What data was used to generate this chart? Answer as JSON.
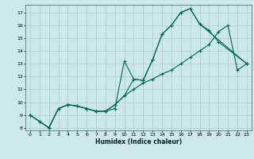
{
  "xlabel": "Humidex (Indice chaleur)",
  "bg_color": "#cce8e8",
  "grid_color": "#aacccc",
  "line_color": "#006655",
  "xlim": [
    -0.5,
    23.5
  ],
  "ylim": [
    7.8,
    17.6
  ],
  "xticks": [
    0,
    1,
    2,
    3,
    4,
    5,
    6,
    7,
    8,
    9,
    10,
    11,
    12,
    13,
    14,
    15,
    16,
    17,
    18,
    19,
    20,
    21,
    22,
    23
  ],
  "yticks": [
    8,
    9,
    10,
    11,
    12,
    13,
    14,
    15,
    16,
    17
  ],
  "line1_x": [
    0,
    1,
    2,
    3,
    4,
    5,
    6,
    7,
    8,
    9,
    10,
    11,
    12,
    13,
    14,
    15,
    16,
    17,
    18,
    19,
    20,
    23
  ],
  "line1_y": [
    9.0,
    8.5,
    8.0,
    9.5,
    9.8,
    9.7,
    9.5,
    9.3,
    9.3,
    9.5,
    13.2,
    11.8,
    11.7,
    13.3,
    15.3,
    16.0,
    17.0,
    17.3,
    16.1,
    15.6,
    14.7,
    13.0
  ],
  "line2_x": [
    0,
    1,
    2,
    3,
    4,
    5,
    6,
    7,
    8,
    9,
    10,
    11,
    12,
    13,
    14,
    15,
    16,
    17,
    18,
    23
  ],
  "line2_y": [
    9.0,
    8.5,
    8.0,
    9.5,
    9.8,
    9.7,
    9.5,
    9.3,
    9.3,
    9.8,
    10.5,
    11.8,
    11.7,
    13.3,
    15.3,
    16.0,
    17.0,
    17.3,
    16.1,
    13.0
  ],
  "line3_x": [
    0,
    1,
    2,
    3,
    4,
    5,
    6,
    7,
    8,
    9,
    10,
    11,
    12,
    13,
    14,
    15,
    16,
    17,
    18,
    19,
    20,
    21,
    22,
    23
  ],
  "line3_y": [
    9.0,
    8.5,
    8.0,
    9.5,
    9.8,
    9.7,
    9.5,
    9.3,
    9.3,
    9.8,
    10.5,
    11.0,
    11.5,
    11.8,
    12.2,
    12.5,
    13.0,
    13.5,
    14.0,
    14.5,
    15.5,
    16.0,
    12.5,
    13.0
  ]
}
